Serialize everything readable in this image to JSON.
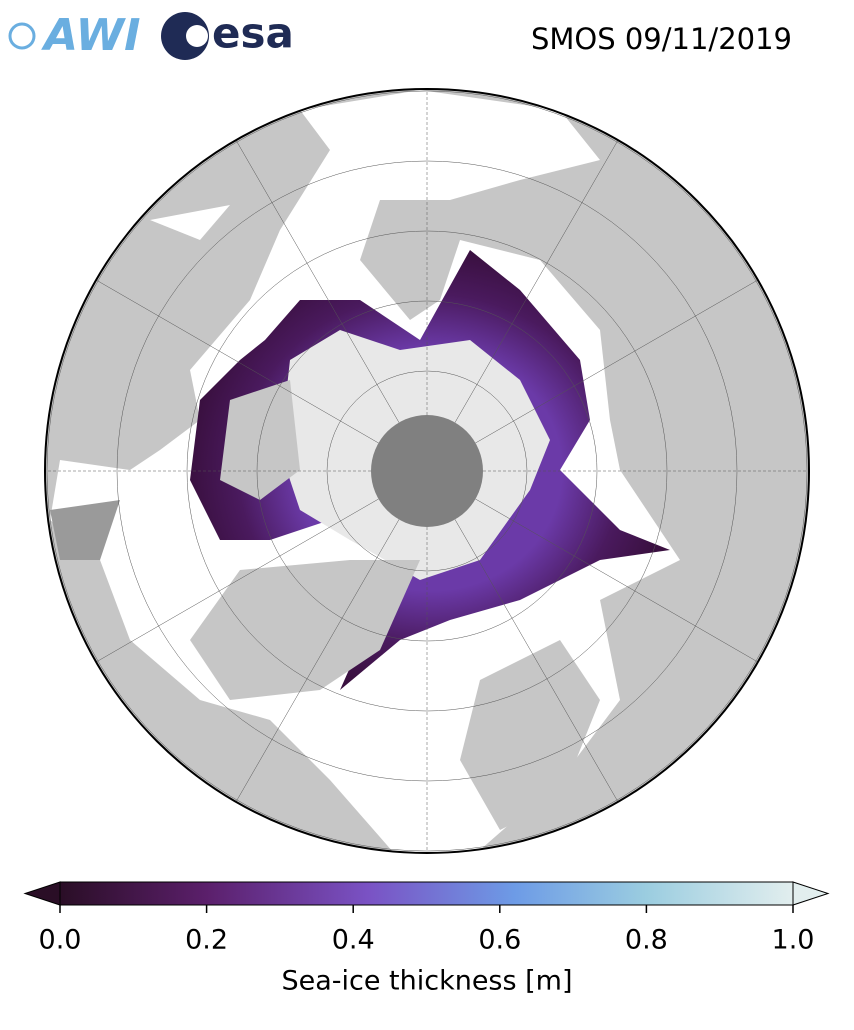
{
  "header": {
    "logos": [
      "AWI",
      "esa"
    ],
    "title": "SMOS 09/11/2019"
  },
  "colorbar": {
    "label": "Sea-ice thickness [m]",
    "range": [
      0,
      1
    ],
    "ticks": [
      {
        "value": 0,
        "label": "0.0"
      },
      {
        "value": 0.2,
        "label": "0.2"
      },
      {
        "value": 0.4,
        "label": "0.4"
      },
      {
        "value": 0.6,
        "label": "0.6"
      },
      {
        "value": 0.8,
        "label": "0.8"
      },
      {
        "value": 1,
        "label": "1.0"
      }
    ]
  }
}
